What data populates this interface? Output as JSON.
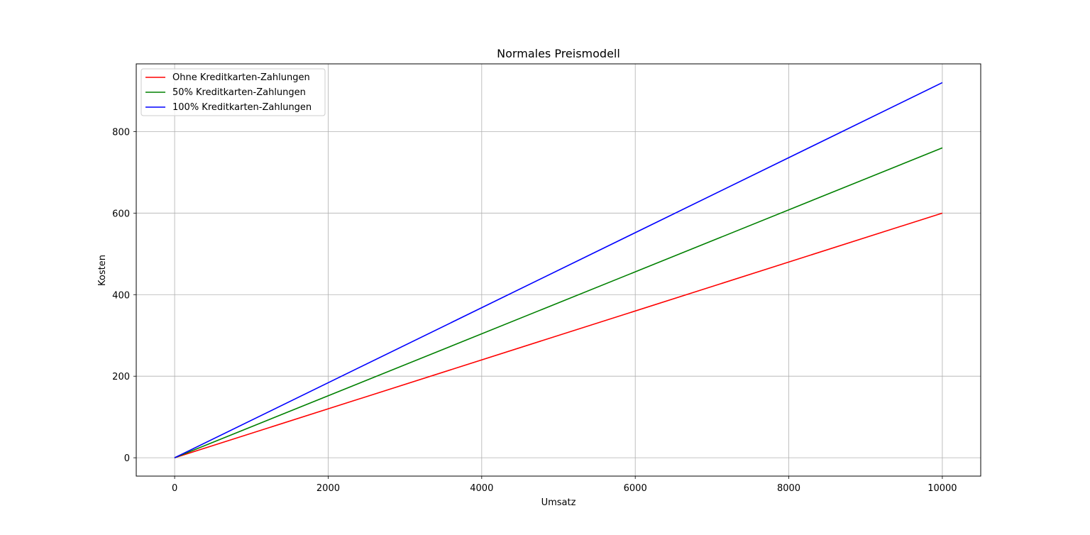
{
  "chart_data": {
    "type": "line",
    "title": "Normales Preismodell",
    "xlabel": "Umsatz",
    "ylabel": "Kosten",
    "xlim": [
      -500,
      10500
    ],
    "ylim": [
      -45,
      966
    ],
    "xticks": [
      0,
      2000,
      4000,
      6000,
      8000,
      10000
    ],
    "yticks": [
      0,
      200,
      400,
      600,
      800
    ],
    "grid": true,
    "legend_position": "top-left",
    "series": [
      {
        "name": "Ohne Kreditkarten-Zahlungen",
        "color": "#ff0000",
        "x": [
          0,
          10000
        ],
        "y": [
          0,
          600
        ]
      },
      {
        "name": "50% Kreditkarten-Zahlungen",
        "color": "#008000",
        "x": [
          0,
          10000
        ],
        "y": [
          0,
          760
        ]
      },
      {
        "name": "100% Kreditkarten-Zahlungen",
        "color": "#0000ff",
        "x": [
          0,
          10000
        ],
        "y": [
          0,
          920
        ]
      }
    ]
  }
}
